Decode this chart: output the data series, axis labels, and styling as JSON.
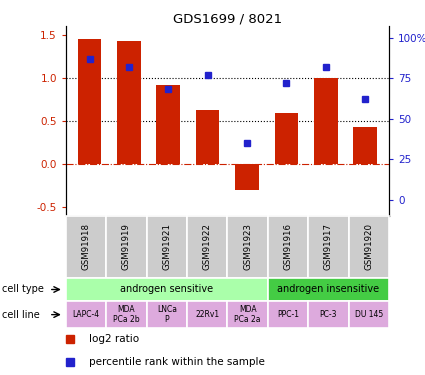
{
  "title": "GDS1699 / 8021",
  "samples": [
    "GSM91918",
    "GSM91919",
    "GSM91921",
    "GSM91922",
    "GSM91923",
    "GSM91916",
    "GSM91917",
    "GSM91920"
  ],
  "log2_ratio": [
    1.45,
    1.43,
    0.92,
    0.63,
    -0.3,
    0.6,
    1.0,
    0.43
  ],
  "percentile_rank": [
    87,
    82,
    68,
    77,
    35,
    72,
    82,
    62
  ],
  "bar_color": "#cc2200",
  "dot_color": "#2222cc",
  "cell_type_groups": [
    {
      "label": "androgen sensitive",
      "start": 0,
      "end": 4,
      "color": "#aaffaa"
    },
    {
      "label": "androgen insensitive",
      "start": 5,
      "end": 7,
      "color": "#44cc44"
    }
  ],
  "cell_lines": [
    "LAPC-4",
    "MDA\nPCa 2b",
    "LNCa\nP",
    "22Rv1",
    "MDA\nPCa 2a",
    "PPC-1",
    "PC-3",
    "DU 145"
  ],
  "cell_line_color": "#ddaadd",
  "sample_box_color": "#cccccc",
  "ylim": [
    -0.6,
    1.6
  ],
  "yticks_left": [
    -0.5,
    0.0,
    0.5,
    1.0,
    1.5
  ],
  "yticks_right": [
    0,
    25,
    50,
    75,
    100
  ],
  "y2lim": [
    -10,
    107
  ]
}
